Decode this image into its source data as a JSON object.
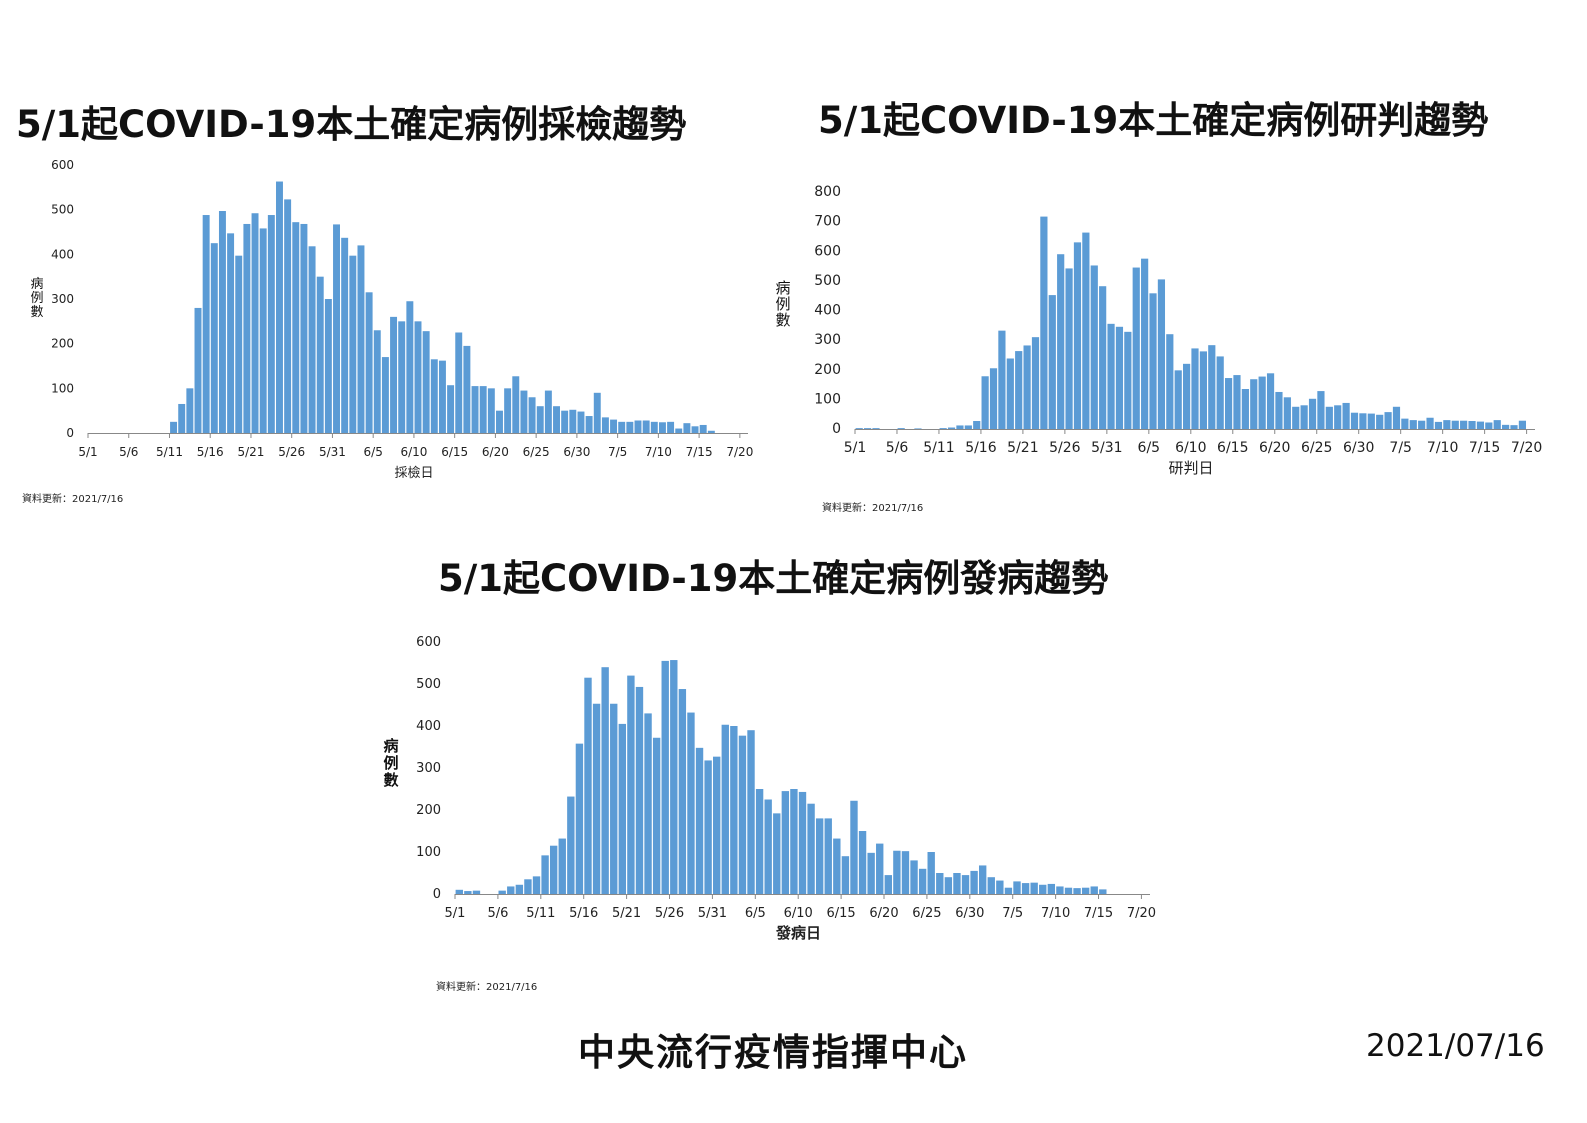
{
  "charts": [
    {
      "title": "5/1起COVID-19本土確定病例採檢趨勢",
      "update_note": "資料更新：2021/7/16",
      "chart_data": {
        "type": "bar",
        "title": "5/1起COVID-19本土確定病例採檢趨勢",
        "xlabel": "採檢日",
        "ylabel": "病例數",
        "ylim": [
          0,
          600
        ],
        "yticks": [
          0,
          100,
          200,
          300,
          400,
          500,
          600
        ],
        "xticks": [
          "5/1",
          "5/6",
          "5/11",
          "5/16",
          "5/21",
          "5/26",
          "5/31",
          "6/5",
          "6/10",
          "6/15",
          "6/20",
          "6/25",
          "6/30",
          "7/5",
          "7/10",
          "7/15",
          "7/20"
        ],
        "color": "#5b9bd5",
        "values": [
          0,
          0,
          0,
          0,
          0,
          0,
          0,
          0,
          0,
          0,
          25,
          65,
          100,
          280,
          488,
          425,
          497,
          447,
          397,
          468,
          492,
          458,
          488,
          563,
          523,
          472,
          468,
          418,
          350,
          300,
          467,
          437,
          397,
          420,
          315,
          230,
          170,
          260,
          250,
          295,
          250,
          228,
          165,
          162,
          107,
          225,
          195,
          105,
          105,
          100,
          50,
          100,
          127,
          95,
          80,
          60,
          95,
          60,
          50,
          52,
          48,
          38,
          90,
          35,
          30,
          25,
          25,
          28,
          28,
          25,
          24,
          25,
          10,
          22,
          15,
          18,
          5
        ]
      }
    },
    {
      "title": "5/1起COVID-19本土確定病例研判趨勢",
      "update_note": "資料更新：2021/7/16",
      "chart_data": {
        "type": "bar",
        "title": "5/1起COVID-19本土確定病例研判趨勢",
        "xlabel": "研判日",
        "ylabel": "病例數",
        "ylim": [
          0,
          800
        ],
        "yticks": [
          0,
          100,
          200,
          300,
          400,
          500,
          600,
          700,
          800
        ],
        "xticks": [
          "5/1",
          "5/6",
          "5/11",
          "5/16",
          "5/21",
          "5/26",
          "5/31",
          "6/5",
          "6/10",
          "6/15",
          "6/20",
          "6/25",
          "6/30",
          "7/5",
          "7/10",
          "7/15",
          "7/20"
        ],
        "color": "#5b9bd5",
        "values": [
          3,
          3,
          3,
          0,
          0,
          3,
          0,
          2,
          0,
          0,
          3,
          5,
          12,
          12,
          27,
          178,
          205,
          332,
          238,
          263,
          282,
          310,
          717,
          452,
          590,
          542,
          630,
          663,
          552,
          482,
          355,
          345,
          328,
          545,
          575,
          458,
          505,
          320,
          198,
          220,
          272,
          262,
          283,
          245,
          172,
          182,
          135,
          168,
          177,
          188,
          125,
          107,
          75,
          80,
          102,
          128,
          75,
          80,
          88,
          55,
          53,
          52,
          48,
          57,
          75,
          35,
          30,
          28,
          38,
          24,
          30,
          28,
          28,
          27,
          25,
          22,
          30,
          14,
          13,
          28
        ]
      }
    },
    {
      "title": "5/1起COVID-19本土確定病例發病趨勢",
      "update_note": "資料更新：2021/7/16",
      "chart_data": {
        "type": "bar",
        "title": "5/1起COVID-19本土確定病例發病趨勢",
        "xlabel": "發病日",
        "ylabel": "病例數",
        "ylim": [
          0,
          600
        ],
        "yticks": [
          0,
          100,
          200,
          300,
          400,
          500,
          600
        ],
        "xticks": [
          "5/1",
          "5/6",
          "5/11",
          "5/16",
          "5/21",
          "5/26",
          "5/31",
          "6/5",
          "6/10",
          "6/15",
          "6/20",
          "6/25",
          "6/30",
          "7/5",
          "7/10",
          "7/15",
          "7/20"
        ],
        "color": "#5b9bd5",
        "values": [
          10,
          7,
          8,
          0,
          0,
          8,
          18,
          22,
          35,
          42,
          92,
          115,
          132,
          232,
          358,
          515,
          453,
          540,
          453,
          405,
          520,
          493,
          430,
          372,
          555,
          557,
          488,
          432,
          348,
          318,
          327,
          403,
          400,
          377,
          390,
          250,
          225,
          192,
          245,
          250,
          243,
          215,
          180,
          180,
          132,
          90,
          222,
          150,
          98,
          120,
          45,
          103,
          102,
          80,
          60,
          100,
          50,
          40,
          50,
          45,
          55,
          68,
          40,
          32,
          15,
          30,
          26,
          27,
          22,
          24,
          18,
          15,
          14,
          15,
          18,
          11,
          0
        ]
      }
    }
  ],
  "footer": {
    "org": "中央流行疫情指揮中心",
    "date": "2021/07/16"
  }
}
